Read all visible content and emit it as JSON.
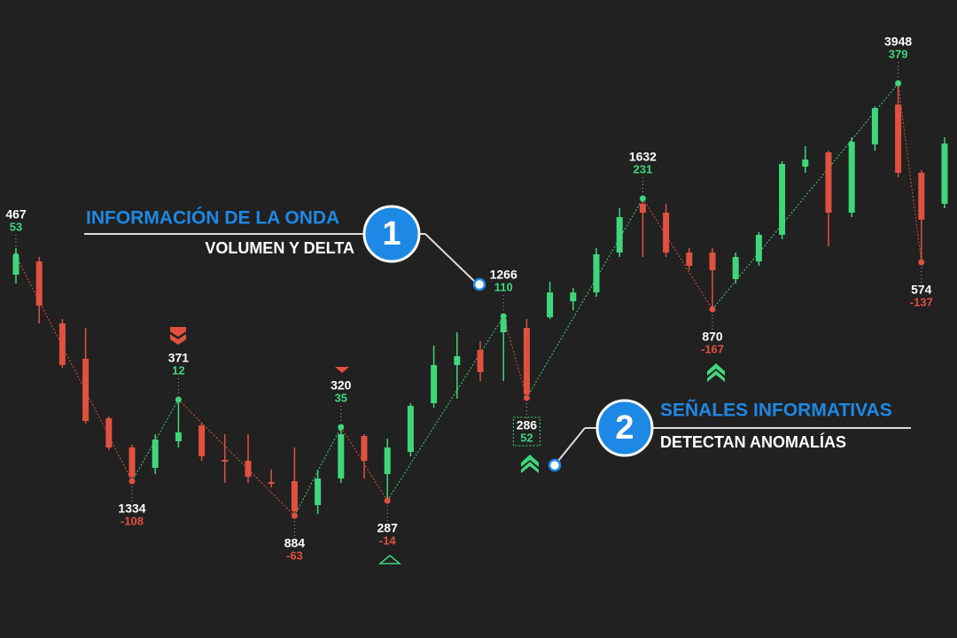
{
  "chart_data": {
    "type": "candlestick",
    "up_color": "#3fd67c",
    "down_color": "#e0513f",
    "candles": [
      [
        410,
        440,
        400,
        430
      ],
      [
        425,
        430,
        355,
        375
      ],
      [
        355,
        360,
        305,
        308
      ],
      [
        315,
        350,
        242,
        245
      ],
      [
        248,
        250,
        212,
        215
      ],
      [
        215,
        218,
        175,
        182
      ],
      [
        192,
        230,
        185,
        224
      ],
      [
        222,
        270,
        215,
        232
      ],
      [
        240,
        243,
        200,
        205
      ],
      [
        201,
        230,
        175,
        199
      ],
      [
        200,
        230,
        175,
        182
      ],
      [
        176,
        190,
        170,
        174
      ],
      [
        177,
        215,
        137,
        143
      ],
      [
        150,
        190,
        140,
        180
      ],
      [
        180,
        240,
        175,
        230
      ],
      [
        228,
        230,
        180,
        200
      ],
      [
        185,
        225,
        155,
        215
      ],
      [
        210,
        265,
        205,
        262
      ],
      [
        265,
        330,
        260,
        308
      ],
      [
        308,
        345,
        270,
        318
      ],
      [
        325,
        335,
        290,
        300
      ],
      [
        345,
        365,
        290,
        360
      ],
      [
        350,
        360,
        268,
        275
      ],
      [
        362,
        402,
        360,
        390
      ],
      [
        380,
        395,
        370,
        390
      ],
      [
        390,
        440,
        385,
        433
      ],
      [
        435,
        485,
        430,
        475
      ],
      [
        490,
        495,
        430,
        480
      ],
      [
        480,
        490,
        430,
        435
      ],
      [
        435,
        440,
        415,
        420
      ],
      [
        435,
        440,
        372,
        415
      ],
      [
        405,
        435,
        400,
        430
      ],
      [
        425,
        458,
        420,
        455
      ],
      [
        455,
        538,
        450,
        535
      ],
      [
        532,
        555,
        525,
        540
      ],
      [
        548,
        550,
        442,
        480
      ],
      [
        480,
        565,
        475,
        560
      ],
      [
        557,
        600,
        550,
        598
      ],
      [
        602,
        626,
        520,
        525
      ],
      [
        525,
        528,
        424,
        472
      ],
      [
        490,
        565,
        485,
        558
      ]
    ],
    "waves": [
      {
        "candle": 0,
        "price": 431,
        "volume": 467,
        "delta": 53
      },
      {
        "candle": 5,
        "price": 177,
        "volume": 1334,
        "delta": -108
      },
      {
        "candle": 7,
        "price": 269,
        "volume": 371,
        "delta": 12
      },
      {
        "candle": 12,
        "price": 138,
        "volume": 884,
        "delta": -63
      },
      {
        "candle": 14,
        "price": 238,
        "volume": 320,
        "delta": 35
      },
      {
        "candle": 16,
        "price": 155,
        "volume": 287,
        "delta": -14
      },
      {
        "candle": 21,
        "price": 363,
        "volume": 1266,
        "delta": 110
      },
      {
        "candle": 22,
        "price": 271,
        "volume": 286,
        "delta": 52
      },
      {
        "candle": 27,
        "price": 496,
        "volume": 1632,
        "delta": 231
      },
      {
        "candle": 30,
        "price": 371,
        "volume": 870,
        "delta": -167
      },
      {
        "candle": 38,
        "price": 626,
        "volume": 3948,
        "delta": 379
      },
      {
        "candle": 39,
        "price": 424,
        "volume": 574,
        "delta": -137
      }
    ],
    "callouts": [
      {
        "number": "1",
        "title": "INFORMACIÓN DE LA ONDA",
        "subtitle": "VOLUMEN Y DELTA"
      },
      {
        "number": "2",
        "title": "SEÑALES INFORMATIVAS",
        "subtitle": "DETECTAN ANOMALÍAS"
      }
    ]
  }
}
